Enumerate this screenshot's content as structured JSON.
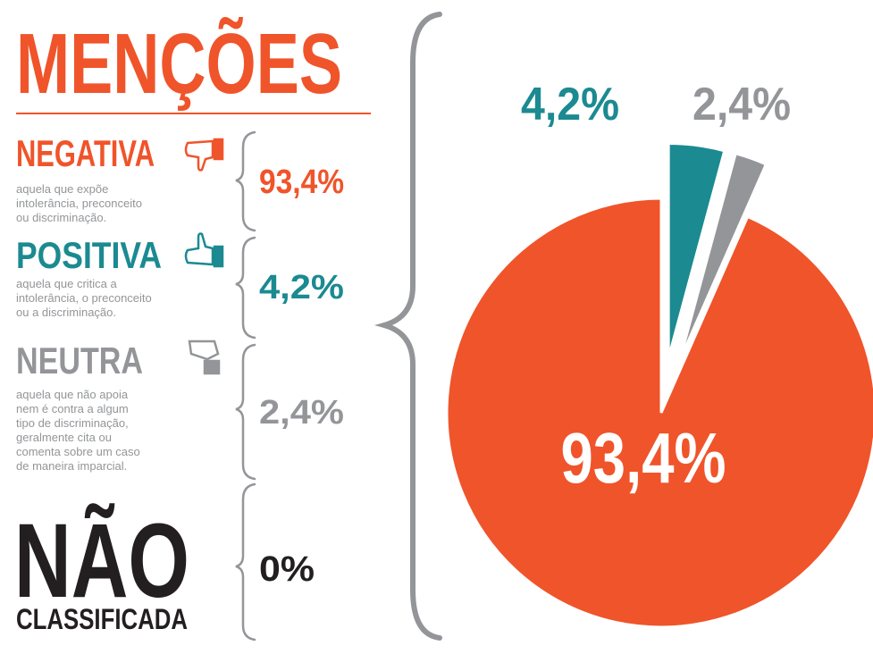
{
  "chart_data": {
    "type": "pie",
    "title": "MENÇÕES",
    "categories": [
      "NEGATIVA",
      "POSITIVA",
      "NEUTRA"
    ],
    "descriptions": [
      [
        "aquela que expõe",
        "intolerância, preconceito",
        "ou discriminação."
      ],
      [
        "aquela que critica a",
        "intolerância, o preconceito",
        "ou a discriminação."
      ],
      [
        "aquela que não apoia",
        "nem é contra a algum",
        "tipo de discriminação,",
        "geralmente cita ou",
        "comenta sobre um caso",
        "de maneira imparcial."
      ]
    ],
    "values": [
      93.4,
      4.2,
      2.4
    ],
    "value_labels": [
      "93,4%",
      "4,2%",
      "2,4%"
    ],
    "colors": [
      "#f0542a",
      "#1b8a91",
      "#939598"
    ]
  },
  "unclassified": {
    "title": "NÃO",
    "subtitle": "CLASSIFICADA",
    "value": 0,
    "value_label": "0%",
    "color": "#231f20"
  }
}
